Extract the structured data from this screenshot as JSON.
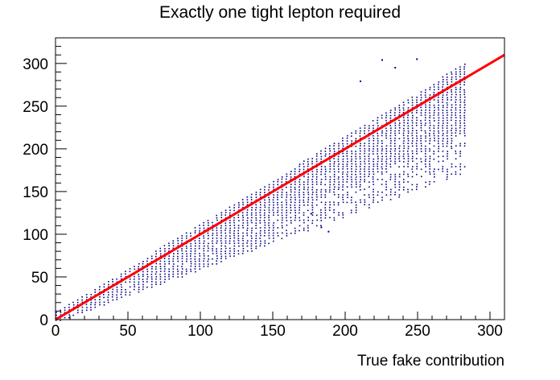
{
  "chart_data": {
    "type": "scatter",
    "title": "Exactly one tight lepton required",
    "xlabel": "True fake contribution",
    "ylabel": "",
    "xlim": [
      0,
      310
    ],
    "ylim": [
      0,
      330
    ],
    "x_ticks": [
      0,
      50,
      100,
      150,
      200,
      250,
      300
    ],
    "y_ticks": [
      0,
      50,
      100,
      150,
      200,
      250,
      300
    ],
    "grid": false,
    "legend": "none",
    "point_color": "#000080",
    "fit_line": {
      "color": "#ff0000",
      "x": [
        0,
        310
      ],
      "y": [
        0,
        310
      ]
    },
    "band": {
      "x_start": 0,
      "x_end": 282,
      "step": 3,
      "upper_offset_at_x0": 10,
      "upper_slope": 1.03,
      "lower_fraction": 0.62,
      "outlier_cutoff_upper_lower_edge": [
        265,
        150
      ]
    },
    "outliers": [
      {
        "x": 225,
        "y": 305
      },
      {
        "x": 249,
        "y": 306
      },
      {
        "x": 234,
        "y": 296
      },
      {
        "x": 188,
        "y": 104
      },
      {
        "x": 210,
        "y": 280
      },
      {
        "x": 176,
        "y": 125
      },
      {
        "x": 183,
        "y": 109
      }
    ]
  }
}
